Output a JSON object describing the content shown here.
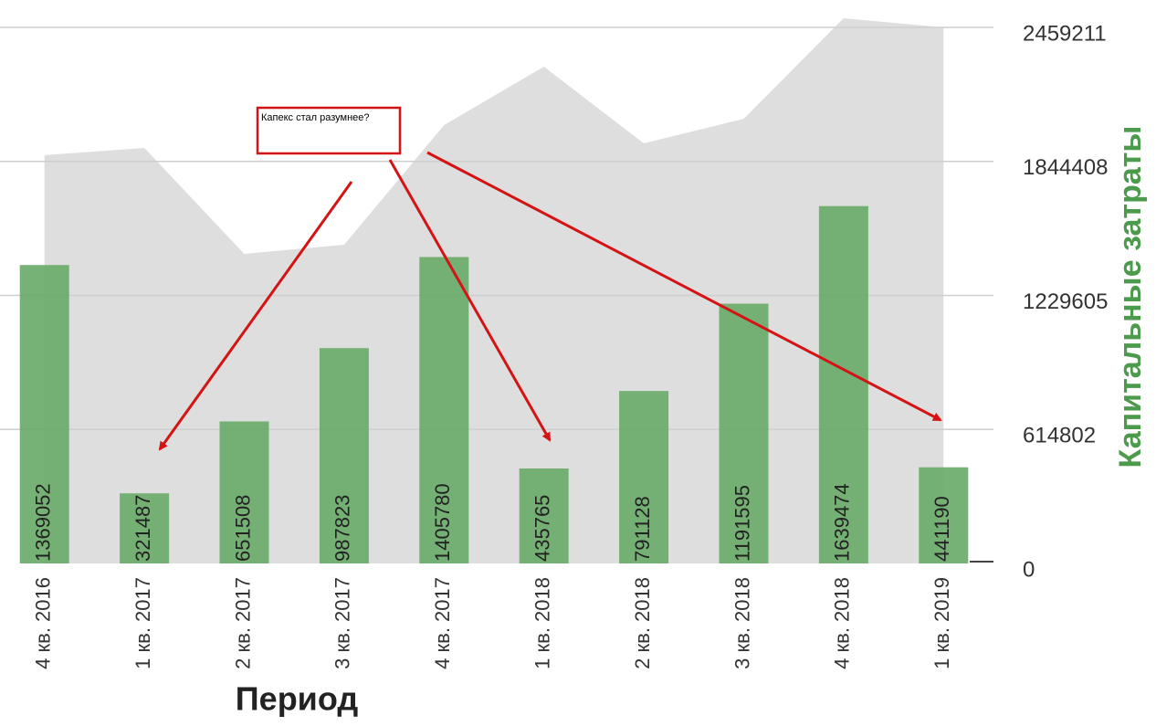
{
  "chart_data": {
    "type": "bar",
    "categories": [
      "4 кв. 2016",
      "1 кв. 2017",
      "2 кв. 2017",
      "3 кв. 2017",
      "4 кв. 2017",
      "1 кв. 2018",
      "2 кв. 2018",
      "3 кв. 2018",
      "4 кв. 2018",
      "1 кв. 2019"
    ],
    "series": [
      {
        "type": "area",
        "color": "#dedede",
        "values": [
          1873000,
          1906000,
          1420000,
          1462000,
          2011000,
          2279000,
          1927000,
          2040000,
          2501000,
          2459000
        ]
      },
      {
        "type": "bar",
        "color": "#6aaa6a",
        "values": [
          1369052,
          321487,
          651508,
          987823,
          1405780,
          435765,
          791128,
          1191595,
          1639474,
          441190
        ]
      }
    ],
    "x_label": "Период",
    "y_label": "Капитальные затраты",
    "ylim": [
      0,
      2459211
    ],
    "yticks": [
      0,
      614802,
      1229605,
      1844408,
      2459211
    ],
    "grid": true,
    "annotations": [
      "Капекс стал разумнее?"
    ]
  }
}
